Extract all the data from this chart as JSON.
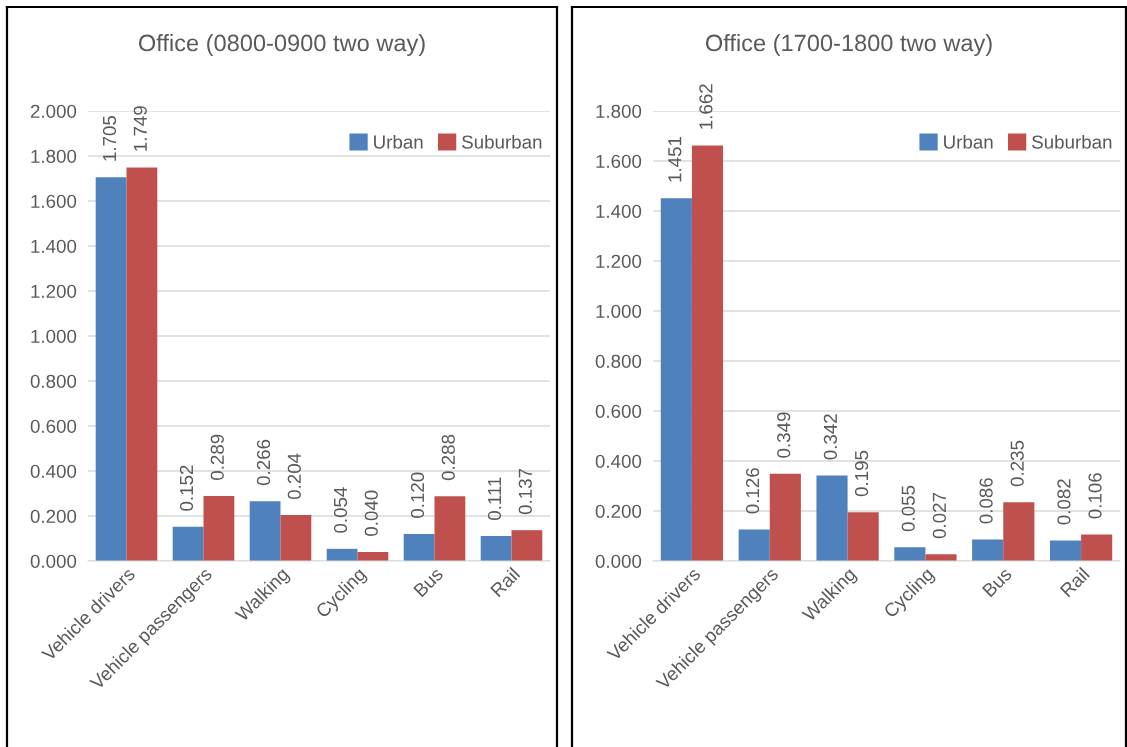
{
  "chart_data": [
    {
      "type": "bar",
      "title": "Office (0800-0900 two way)",
      "categories": [
        "Vehicle drivers",
        "Vehicle passengers",
        "Walking",
        "Cycling",
        "Bus",
        "Rail"
      ],
      "series": [
        {
          "name": "Urban",
          "color": "#4f81bd",
          "values": [
            1.705,
            0.152,
            0.266,
            0.054,
            0.12,
            0.111
          ],
          "value_labels": [
            "1.705",
            "0.152",
            "0.266",
            "0.054",
            "0.120",
            "0.111"
          ]
        },
        {
          "name": "Suburban",
          "color": "#c0504d",
          "values": [
            1.749,
            0.289,
            0.204,
            0.04,
            0.288,
            0.137
          ],
          "value_labels": [
            "1.749",
            "0.289",
            "0.204",
            "0.040",
            "0.288",
            "0.137"
          ]
        }
      ],
      "ylim": [
        0,
        2.0
      ],
      "yticks": [
        {
          "value": 0,
          "label": "0.000"
        },
        {
          "value": 0.2,
          "label": "0.200"
        },
        {
          "value": 0.4,
          "label": "0.400"
        },
        {
          "value": 0.6,
          "label": "0.600"
        },
        {
          "value": 0.8,
          "label": "0.800"
        },
        {
          "value": 1.0,
          "label": "1.000"
        },
        {
          "value": 1.2,
          "label": "1.200"
        },
        {
          "value": 1.4,
          "label": "1.400"
        },
        {
          "value": 1.6,
          "label": "1.600"
        },
        {
          "value": 1.8,
          "label": "1.800"
        },
        {
          "value": 2.0,
          "label": "2.000"
        }
      ],
      "grid": "y",
      "legend": "top right"
    },
    {
      "type": "bar",
      "title": "Office (1700-1800 two way)",
      "categories": [
        "Vehicle drivers",
        "Vehicle passengers",
        "Walking",
        "Cycling",
        "Bus",
        "Rail"
      ],
      "series": [
        {
          "name": "Urban",
          "color": "#4f81bd",
          "values": [
            1.451,
            0.126,
            0.342,
            0.055,
            0.086,
            0.082
          ],
          "value_labels": [
            "1.451",
            "0.126",
            "0.342",
            "0.055",
            "0.086",
            "0.082"
          ]
        },
        {
          "name": "Suburban",
          "color": "#c0504d",
          "values": [
            1.662,
            0.349,
            0.195,
            0.027,
            0.235,
            0.106
          ],
          "value_labels": [
            "1.662",
            "0.349",
            "0.195",
            "0.027",
            "0.235",
            "0.106"
          ]
        }
      ],
      "ylim": [
        0,
        1.8
      ],
      "yticks": [
        {
          "value": 0,
          "label": "0.000"
        },
        {
          "value": 0.2,
          "label": "0.200"
        },
        {
          "value": 0.4,
          "label": "0.400"
        },
        {
          "value": 0.6,
          "label": "0.600"
        },
        {
          "value": 0.8,
          "label": "0.800"
        },
        {
          "value": 1.0,
          "label": "1.000"
        },
        {
          "value": 1.2,
          "label": "1.200"
        },
        {
          "value": 1.4,
          "label": "1.400"
        },
        {
          "value": 1.6,
          "label": "1.600"
        },
        {
          "value": 1.8,
          "label": "1.800"
        }
      ],
      "grid": "y",
      "legend": "top right"
    }
  ]
}
